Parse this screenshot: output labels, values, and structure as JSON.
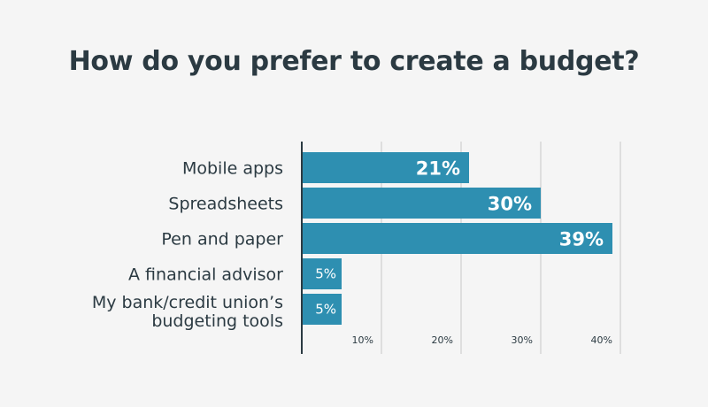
{
  "chart_data": {
    "type": "bar",
    "orientation": "horizontal",
    "title": "How do you prefer to create a budget?",
    "categories": [
      "Mobile apps",
      "Spreadsheets",
      "Pen and paper",
      "A financial advisor",
      "My bank/credit union’s budgeting tools"
    ],
    "category_lines": [
      [
        "Mobile apps"
      ],
      [
        "Spreadsheets"
      ],
      [
        "Pen and paper"
      ],
      [
        "A financial advisor"
      ],
      [
        "My bank/credit union’s",
        "budgeting tools"
      ]
    ],
    "values": [
      21,
      30,
      39,
      5,
      5
    ],
    "value_labels": [
      "21%",
      "30%",
      "39%",
      "5%",
      "5%"
    ],
    "xticks": [
      10,
      20,
      30,
      40
    ],
    "xtick_labels": [
      "10%",
      "20%",
      "30%",
      "40%"
    ],
    "xlim": [
      0,
      40
    ],
    "grid": true,
    "colors": {
      "bar": "#2e8fb1",
      "grid": "#d6d6d6",
      "axis": "#2b3a42",
      "text": "#2b3a42",
      "background": "#f5f5f5"
    }
  }
}
